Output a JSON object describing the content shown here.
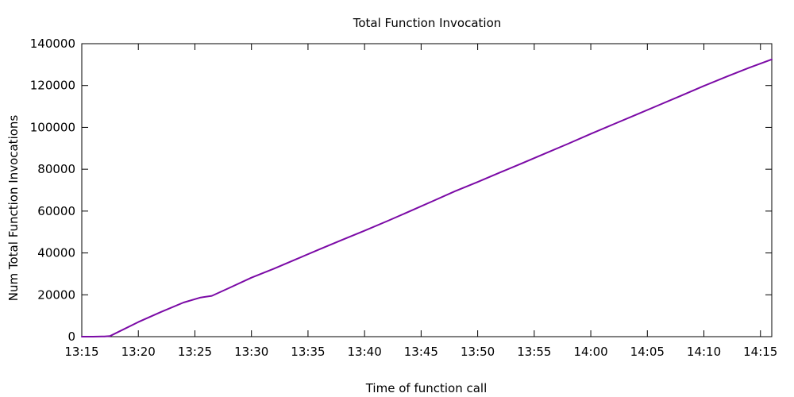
{
  "chart_data": {
    "type": "line",
    "title": "Total Function Invocation",
    "xlabel": "Time of function call",
    "ylabel": "Num Total Function Invocations",
    "x_ticks": [
      "13:15",
      "13:20",
      "13:25",
      "13:30",
      "13:35",
      "13:40",
      "13:45",
      "13:50",
      "13:55",
      "14:00",
      "14:05",
      "14:10",
      "14:15"
    ],
    "y_ticks": [
      "0",
      "20000",
      "40000",
      "60000",
      "80000",
      "100000",
      "120000",
      "140000"
    ],
    "xlim": [
      "13:15",
      "14:16"
    ],
    "ylim": [
      0,
      140000
    ],
    "grid": false,
    "legend": "none",
    "line_color": "#7b0aa6",
    "series": [
      {
        "x": [
          "13:15",
          "13:16",
          "13:17",
          "13:17:30",
          "13:20",
          "13:22",
          "13:24",
          "13:25:30",
          "13:26:30",
          "13:28",
          "13:30",
          "13:32",
          "13:34",
          "13:36",
          "13:38",
          "13:40",
          "13:42",
          "13:44",
          "13:46",
          "13:48",
          "13:50",
          "13:52",
          "13:54",
          "13:56",
          "13:58",
          "14:00",
          "14:02",
          "14:04",
          "14:06",
          "14:08",
          "14:10",
          "14:12",
          "14:14",
          "14:16"
        ],
        "y": [
          0,
          0,
          100,
          300,
          7000,
          11800,
          16300,
          18700,
          19500,
          23200,
          28200,
          32500,
          37100,
          41700,
          46200,
          50600,
          55200,
          59900,
          64700,
          69500,
          73900,
          78500,
          83000,
          87600,
          92200,
          96900,
          101500,
          106000,
          110600,
          115200,
          119800,
          124200,
          128500,
          132500
        ]
      }
    ]
  }
}
